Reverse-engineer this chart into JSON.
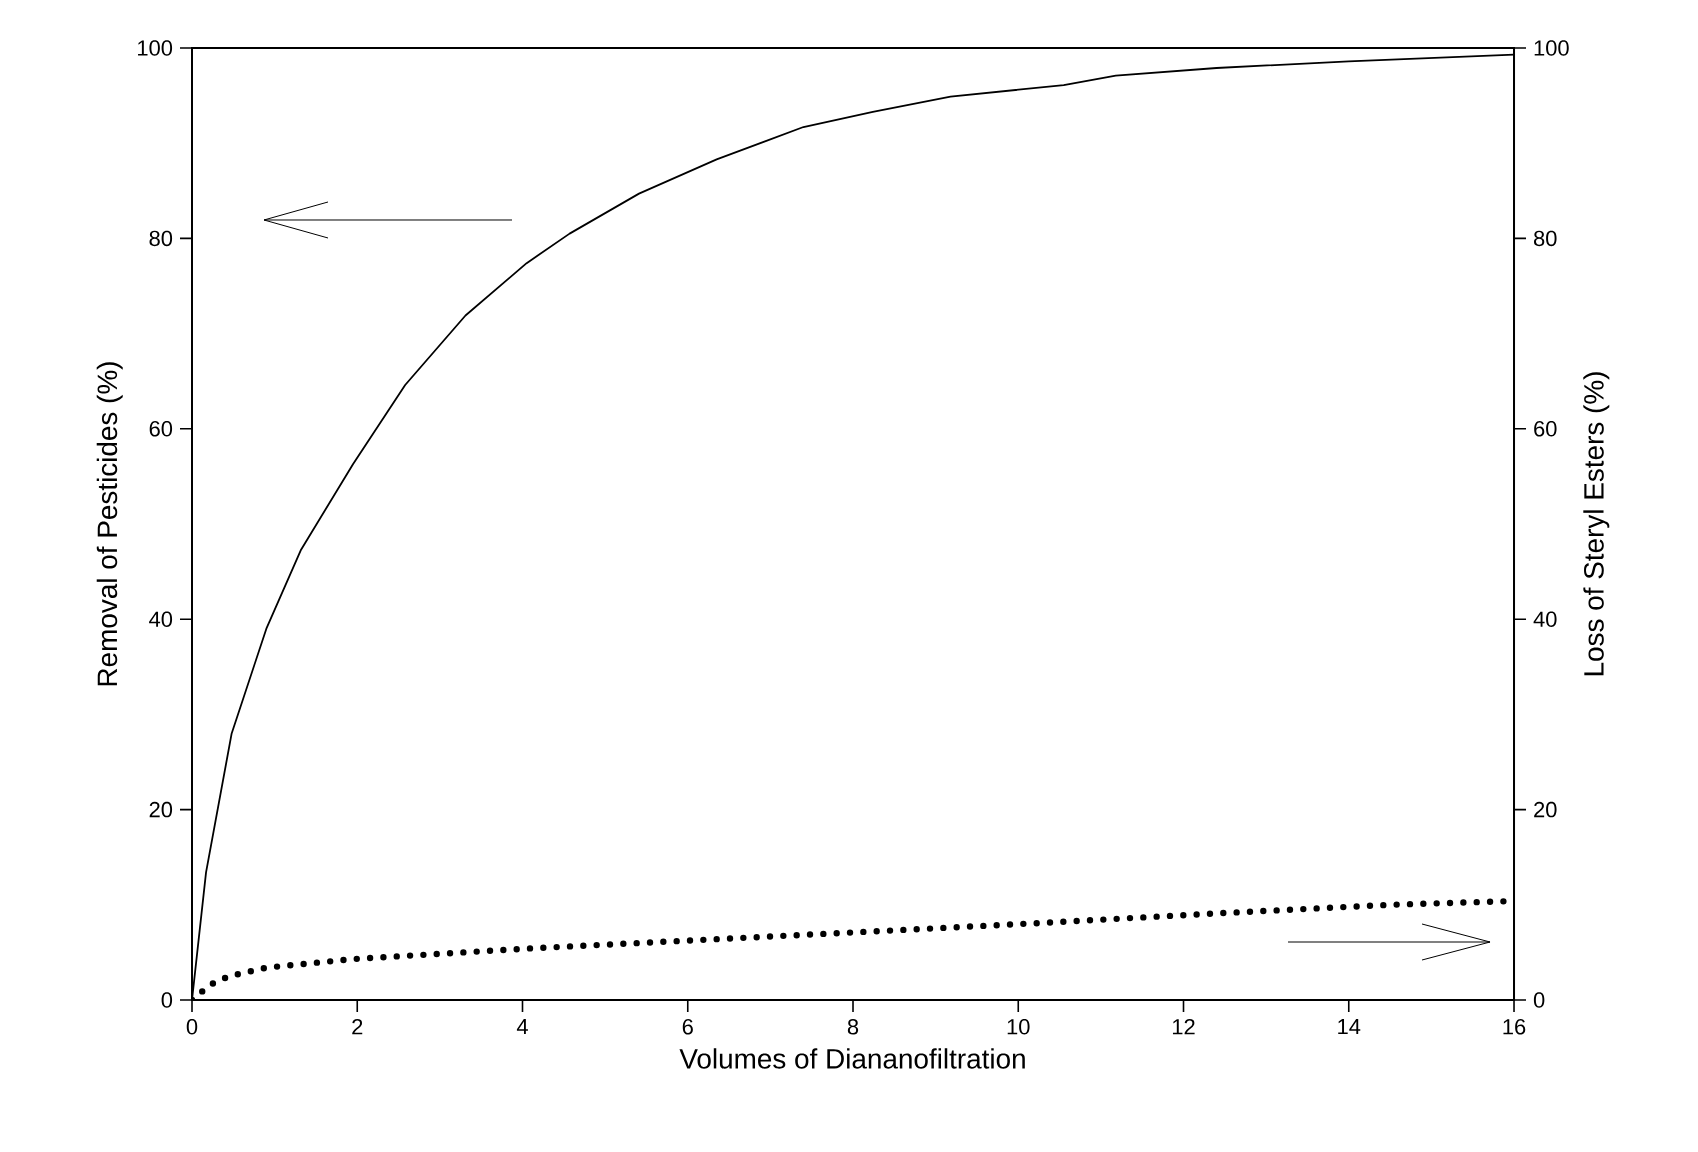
{
  "chart_data": {
    "type": "line",
    "xlabel": "Volumes of Diananofiltration",
    "ylabel": "Removal of Pesticides (%)",
    "y2label": "Loss of Steryl Esters (%)",
    "xlim": [
      0,
      16
    ],
    "xticks": [
      0,
      2,
      4,
      6,
      8,
      10,
      12,
      14,
      16
    ],
    "ylim": [
      0,
      100
    ],
    "yticks": [
      0,
      20,
      40,
      60,
      80,
      100
    ],
    "y2lim": [
      0,
      100
    ],
    "y2ticks": [
      0,
      20,
      40,
      60,
      80,
      100
    ],
    "series": [
      {
        "color": "#000000",
        "line_style": "solid",
        "x": [
          0,
          0.17,
          0.48,
          0.9,
          1.32,
          1.95,
          2.58,
          3.31,
          4.05,
          4.57,
          5.41,
          6.35,
          7.4,
          8.24,
          9.18,
          10.55,
          11.18,
          12.4,
          14.0,
          16
        ],
        "values": [
          0,
          13.4,
          28,
          39,
          47.3,
          56.3,
          64.6,
          71.9,
          77.4,
          80.5,
          84.7,
          88.3,
          91.7,
          93.3,
          94.9,
          96.1,
          97.1,
          97.9,
          98.6,
          99.3
        ]
      },
      {
        "color": "#000000",
        "line_style": "dotted",
        "axis": "y2",
        "x": [
          0,
          0.22,
          0.45,
          0.9,
          1.95,
          4.05,
          6.14,
          8.24,
          10.3,
          12.4,
          14.5,
          16
        ],
        "values": [
          0,
          1.6,
          2.5,
          3.4,
          4.3,
          5.4,
          6.3,
          7.2,
          8.1,
          9.1,
          10.0,
          10.4
        ]
      }
    ]
  }
}
